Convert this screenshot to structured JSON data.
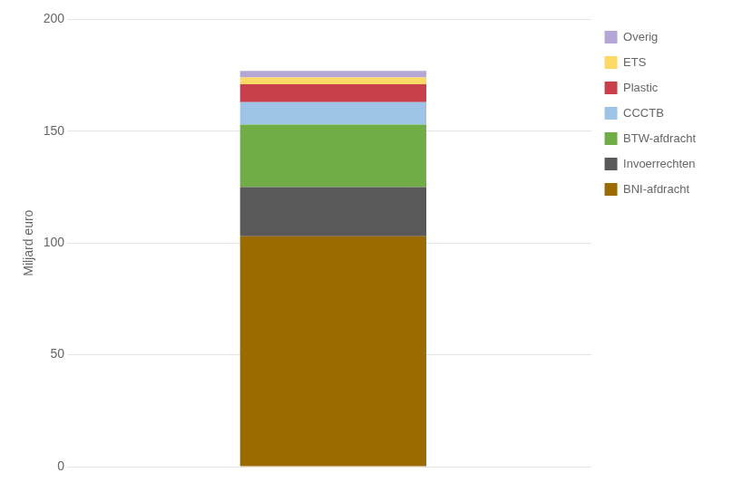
{
  "chart_data": {
    "type": "bar",
    "stacked": true,
    "categories": [
      null
    ],
    "series": [
      {
        "name": "BNI-afdracht",
        "color": "#9C6B00",
        "values": [
          103
        ]
      },
      {
        "name": "Invoerrechten",
        "color": "#595959",
        "values": [
          22
        ]
      },
      {
        "name": "BTW-afdracht",
        "color": "#70AD47",
        "values": [
          28
        ]
      },
      {
        "name": "CCCTB",
        "color": "#9DC3E6",
        "values": [
          10
        ]
      },
      {
        "name": "Plastic",
        "color": "#C9404A",
        "values": [
          8
        ]
      },
      {
        "name": "ETS",
        "color": "#FFD966",
        "values": [
          3
        ]
      },
      {
        "name": "Overig",
        "color": "#B4A7D6",
        "values": [
          3
        ]
      }
    ],
    "ylabel": "Miljard euro",
    "ylim": [
      0,
      200
    ],
    "yticks": [
      0,
      50,
      100,
      150,
      200
    ],
    "grid": true,
    "legend": "upper right",
    "tick_labels": "y"
  }
}
